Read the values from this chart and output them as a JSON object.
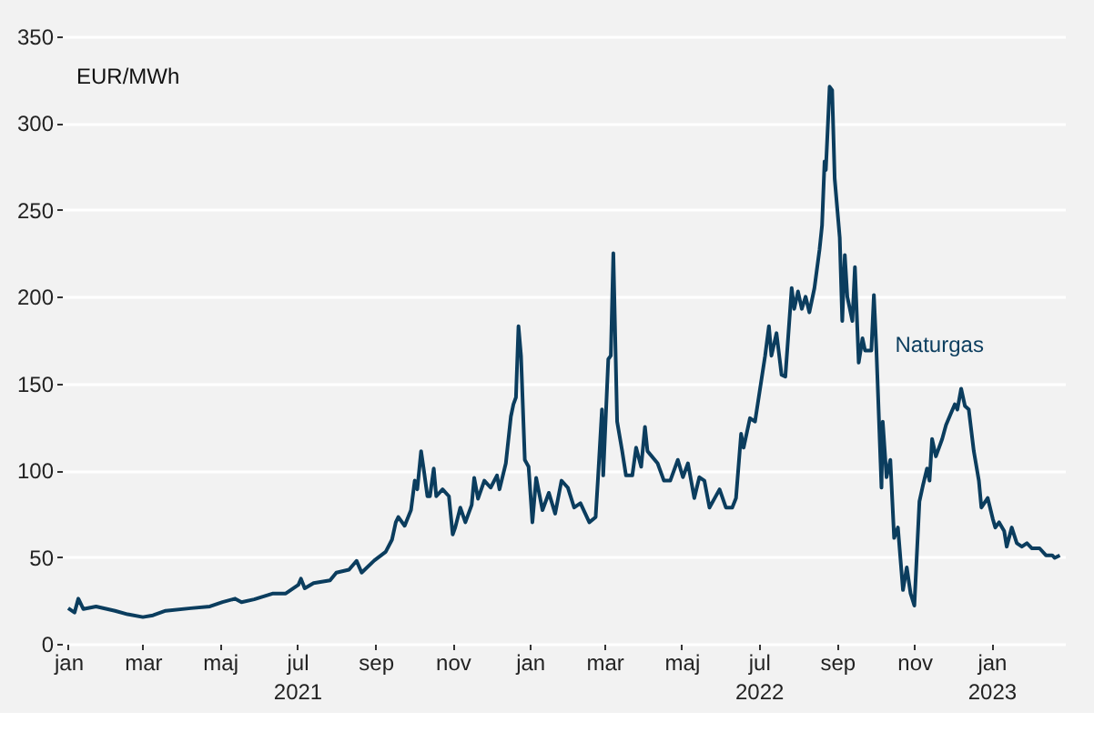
{
  "chart_data": {
    "type": "line",
    "ylabel": "EUR/MWh",
    "grid": "y",
    "legend": false,
    "marker": "none",
    "line_style": "solid",
    "xlim": [
      "2020-12-27",
      "2023-02-28"
    ],
    "ylim": [
      0,
      350
    ],
    "yticks": [
      0,
      50,
      100,
      150,
      200,
      250,
      300,
      350
    ],
    "xticks": [
      {
        "value": "2021-01-01",
        "label": "jan"
      },
      {
        "value": "2021-03-01",
        "label": "mar"
      },
      {
        "value": "2021-05-01",
        "label": "maj"
      },
      {
        "value": "2021-07-01",
        "label": "jul\n2021"
      },
      {
        "value": "2021-09-01",
        "label": "sep"
      },
      {
        "value": "2021-11-01",
        "label": "nov"
      },
      {
        "value": "2022-01-01",
        "label": "jan"
      },
      {
        "value": "2022-03-01",
        "label": "mar"
      },
      {
        "value": "2022-05-01",
        "label": "maj"
      },
      {
        "value": "2022-07-01",
        "label": "jul\n2022"
      },
      {
        "value": "2022-09-01",
        "label": "sep"
      },
      {
        "value": "2022-11-01",
        "label": "nov"
      },
      {
        "value": "2023-01-01",
        "label": "jan\n2023"
      }
    ],
    "series": [
      {
        "name": "Naturgas",
        "color": "#0b3d5e",
        "x": [
          "2021-01-01",
          "2021-01-06",
          "2021-01-09",
          "2021-01-13",
          "2021-01-23",
          "2021-02-07",
          "2021-02-17",
          "2021-03-01",
          "2021-03-09",
          "2021-03-19",
          "2021-04-08",
          "2021-04-23",
          "2021-05-03",
          "2021-05-13",
          "2021-05-18",
          "2021-05-28",
          "2021-06-12",
          "2021-06-22",
          "2021-07-02",
          "2021-07-04",
          "2021-07-07",
          "2021-07-14",
          "2021-07-27",
          "2021-08-01",
          "2021-08-11",
          "2021-08-17",
          "2021-08-21",
          "2021-08-31",
          "2021-09-09",
          "2021-09-14",
          "2021-09-17",
          "2021-09-19",
          "2021-09-24",
          "2021-09-29",
          "2021-10-02",
          "2021-10-04",
          "2021-10-07",
          "2021-10-09",
          "2021-10-12",
          "2021-10-14",
          "2021-10-17",
          "2021-10-19",
          "2021-10-24",
          "2021-10-29",
          "2021-11-01",
          "2021-11-03",
          "2021-11-07",
          "2021-11-11",
          "2021-11-16",
          "2021-11-18",
          "2021-11-21",
          "2021-11-26",
          "2021-12-01",
          "2021-12-06",
          "2021-12-08",
          "2021-12-13",
          "2021-12-17",
          "2021-12-19",
          "2021-12-21",
          "2021-12-23",
          "2021-12-25",
          "2021-12-28",
          "2021-12-31",
          "2022-01-03",
          "2022-01-06",
          "2022-01-11",
          "2022-01-16",
          "2022-01-21",
          "2022-01-26",
          "2022-01-31",
          "2022-02-05",
          "2022-02-10",
          "2022-02-17",
          "2022-02-22",
          "2022-02-24",
          "2022-02-27",
          "2022-02-28",
          "2022-03-04",
          "2022-03-06",
          "2022-03-08",
          "2022-03-11",
          "2022-03-15",
          "2022-03-18",
          "2022-03-23",
          "2022-03-26",
          "2022-03-30",
          "2022-04-02",
          "2022-04-04",
          "2022-04-12",
          "2022-04-17",
          "2022-04-22",
          "2022-04-28",
          "2022-05-02",
          "2022-05-06",
          "2022-05-11",
          "2022-05-15",
          "2022-05-19",
          "2022-05-23",
          "2022-05-31",
          "2022-06-05",
          "2022-06-10",
          "2022-06-13",
          "2022-06-17",
          "2022-06-19",
          "2022-06-24",
          "2022-06-28",
          "2022-07-02",
          "2022-07-06",
          "2022-07-09",
          "2022-07-11",
          "2022-07-15",
          "2022-07-19",
          "2022-07-22",
          "2022-07-27",
          "2022-07-29",
          "2022-08-01",
          "2022-08-04",
          "2022-08-07",
          "2022-08-10",
          "2022-08-14",
          "2022-08-18",
          "2022-08-20",
          "2022-08-22",
          "2022-08-23",
          "2022-08-26",
          "2022-08-28",
          "2022-08-30",
          "2022-09-03",
          "2022-09-05",
          "2022-09-07",
          "2022-09-09",
          "2022-09-13",
          "2022-09-15",
          "2022-09-18",
          "2022-09-21",
          "2022-09-23",
          "2022-09-28",
          "2022-09-30",
          "2022-10-02",
          "2022-10-06",
          "2022-10-07",
          "2022-10-10",
          "2022-10-13",
          "2022-10-16",
          "2022-10-19",
          "2022-10-23",
          "2022-10-26",
          "2022-10-29",
          "2022-11-01",
          "2022-11-05",
          "2022-11-08",
          "2022-11-11",
          "2022-11-13",
          "2022-11-15",
          "2022-11-18",
          "2022-11-23",
          "2022-11-26",
          "2022-11-30",
          "2022-12-03",
          "2022-12-05",
          "2022-12-08",
          "2022-12-11",
          "2022-12-14",
          "2022-12-18",
          "2022-12-22",
          "2022-12-24",
          "2022-12-29",
          "2023-01-02",
          "2023-01-04",
          "2023-01-07",
          "2023-01-11",
          "2023-01-13",
          "2023-01-17",
          "2023-01-21",
          "2023-01-25",
          "2023-01-29",
          "2023-02-02",
          "2023-02-08",
          "2023-02-13",
          "2023-02-18",
          "2023-02-20",
          "2023-02-24"
        ],
        "values": [
          20.5,
          18,
          26,
          20,
          21.5,
          19,
          17,
          15.4,
          16.4,
          19,
          20.5,
          21.5,
          24,
          26,
          24,
          25.6,
          29,
          29,
          34,
          37.5,
          32,
          35,
          36.5,
          41,
          42.7,
          47.8,
          41,
          48,
          53,
          60,
          70,
          73,
          68,
          77,
          94,
          89,
          111,
          101,
          85,
          85,
          101,
          85,
          89,
          85,
          63,
          67,
          78.5,
          70,
          80,
          95.6,
          83.6,
          94,
          90,
          97,
          89,
          104,
          131,
          138,
          142,
          183,
          166,
          106,
          102,
          70,
          95.6,
          77,
          87,
          75,
          94,
          90,
          78.5,
          81,
          70,
          73,
          97,
          135,
          97,
          164,
          166,
          225,
          128,
          111,
          97,
          97,
          113,
          102,
          125,
          111,
          104,
          94,
          94,
          106,
          96,
          104,
          84,
          96,
          94,
          78.5,
          89,
          78.5,
          78.5,
          84,
          121,
          113,
          130,
          128,
          147,
          166,
          183,
          166,
          179,
          155,
          154,
          205,
          193,
          203,
          193,
          200,
          191,
          205,
          227,
          241,
          278,
          273,
          321,
          319,
          268,
          234,
          186,
          224,
          200,
          186,
          217,
          162,
          176,
          169,
          169,
          201,
          169,
          90,
          128,
          96,
          106,
          61,
          67,
          31,
          44,
          29,
          22,
          82,
          92,
          101,
          94,
          118,
          108,
          118,
          126,
          133,
          138,
          135,
          147,
          137,
          135,
          111,
          94,
          78.5,
          84,
          72,
          67,
          70,
          65,
          56,
          67,
          58,
          56,
          58,
          55,
          55,
          51,
          51,
          49.5,
          51
        ]
      }
    ]
  }
}
